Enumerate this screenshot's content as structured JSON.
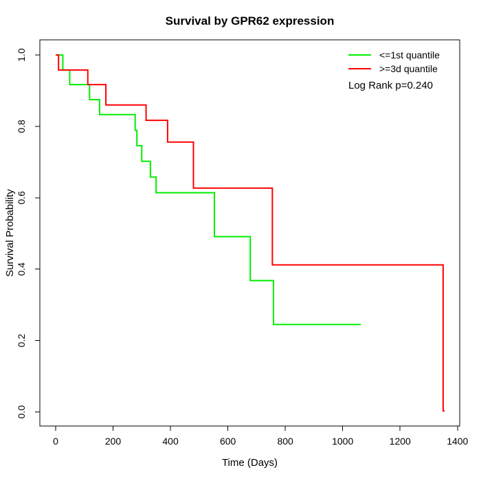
{
  "page": {
    "background": "#FFFFFF"
  },
  "chart_data": {
    "type": "line",
    "subtype": "kaplan-meier-step",
    "title": "Survival by GPR62 expression",
    "xlabel": "Time (Days)",
    "ylabel": "Survival Probability",
    "xlim": [
      0,
      1400
    ],
    "ylim": [
      0.0,
      1.0
    ],
    "xticks": [
      0,
      200,
      400,
      600,
      800,
      1000,
      1200,
      1400
    ],
    "yticks": [
      0.0,
      0.2,
      0.4,
      0.6,
      0.8,
      1.0
    ],
    "grid": false,
    "legend_position": "top-right",
    "annotation": "Log Rank p=0.240",
    "axis_color": "#000000",
    "series": [
      {
        "name": "<=1st quantile",
        "color": "#00EE00",
        "end_time": 1063,
        "steps": [
          [
            0,
            1.0
          ],
          [
            25,
            0.958
          ],
          [
            49,
            0.917
          ],
          [
            118,
            0.875
          ],
          [
            153,
            0.833
          ],
          [
            277,
            0.789
          ],
          [
            283,
            0.746
          ],
          [
            300,
            0.702
          ],
          [
            330,
            0.658
          ],
          [
            350,
            0.614
          ],
          [
            553,
            0.491
          ],
          [
            678,
            0.368
          ],
          [
            759,
            0.245
          ]
        ]
      },
      {
        "name": ">=3d quantile",
        "color": "#FF0000",
        "end_time": 1355,
        "steps": [
          [
            0,
            1.0
          ],
          [
            10,
            0.958
          ],
          [
            112,
            0.917
          ],
          [
            175,
            0.86
          ],
          [
            315,
            0.817
          ],
          [
            390,
            0.756
          ],
          [
            480,
            0.627
          ],
          [
            755,
            0.412
          ],
          [
            1350,
            0.003
          ]
        ]
      }
    ]
  }
}
